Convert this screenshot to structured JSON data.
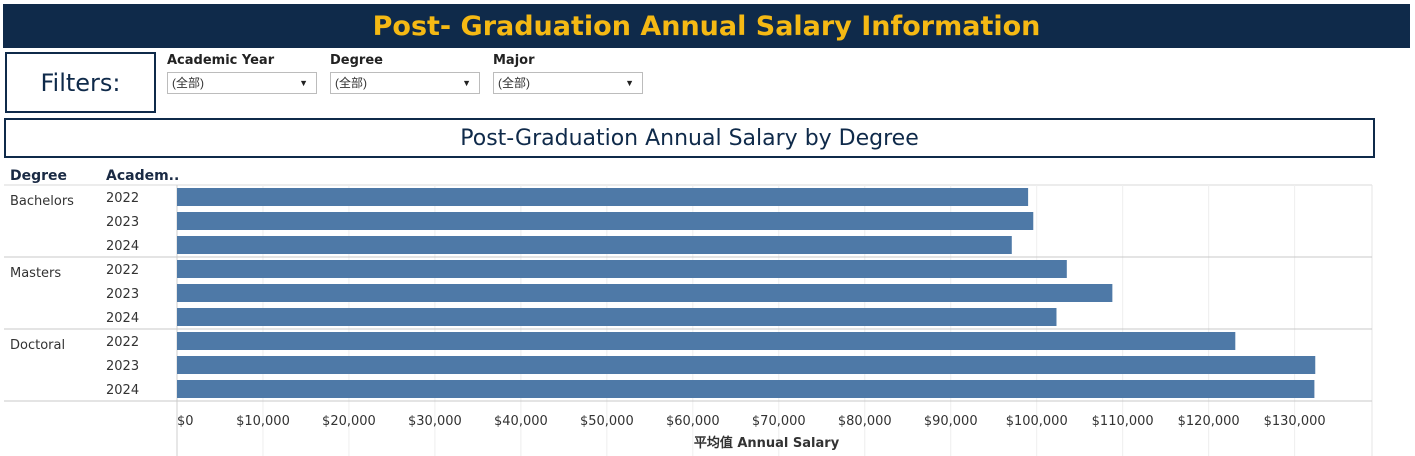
{
  "header": {
    "title": "Post- Graduation Annual Salary Information"
  },
  "filters": {
    "label": "Filters:",
    "items": [
      {
        "label": "Academic Year",
        "value": "(全部)"
      },
      {
        "label": "Degree",
        "value": "(全部)"
      },
      {
        "label": "Major",
        "value": "(全部)"
      }
    ]
  },
  "chart_data": {
    "type": "bar",
    "orientation": "horizontal",
    "title": "Post-Graduation Annual Salary by Degree",
    "row_headers": [
      "Degree",
      "Academ.."
    ],
    "groups": [
      {
        "name": "Bachelors",
        "rows": [
          {
            "year": "2022",
            "value": 99000
          },
          {
            "year": "2023",
            "value": 99600
          },
          {
            "year": "2024",
            "value": 97100
          }
        ]
      },
      {
        "name": "Masters",
        "rows": [
          {
            "year": "2022",
            "value": 103500
          },
          {
            "year": "2023",
            "value": 108800
          },
          {
            "year": "2024",
            "value": 102300
          }
        ]
      },
      {
        "name": "Doctoral",
        "rows": [
          {
            "year": "2022",
            "value": 123100
          },
          {
            "year": "2023",
            "value": 132400
          },
          {
            "year": "2024",
            "value": 132300
          }
        ]
      }
    ],
    "xlabel": "平均值 Annual Salary",
    "xlim": [
      0,
      139000
    ],
    "xticks": [
      0,
      10000,
      20000,
      30000,
      40000,
      50000,
      60000,
      70000,
      80000,
      90000,
      100000,
      110000,
      120000,
      130000
    ],
    "xtick_labels": [
      "$0",
      "$10,000",
      "$20,000",
      "$30,000",
      "$40,000",
      "$50,000",
      "$60,000",
      "$70,000",
      "$80,000",
      "$90,000",
      "$100,000",
      "$110,000",
      "$120,000",
      "$130,000"
    ],
    "grid": true,
    "colors": {
      "bar": "#4e79a7"
    }
  }
}
